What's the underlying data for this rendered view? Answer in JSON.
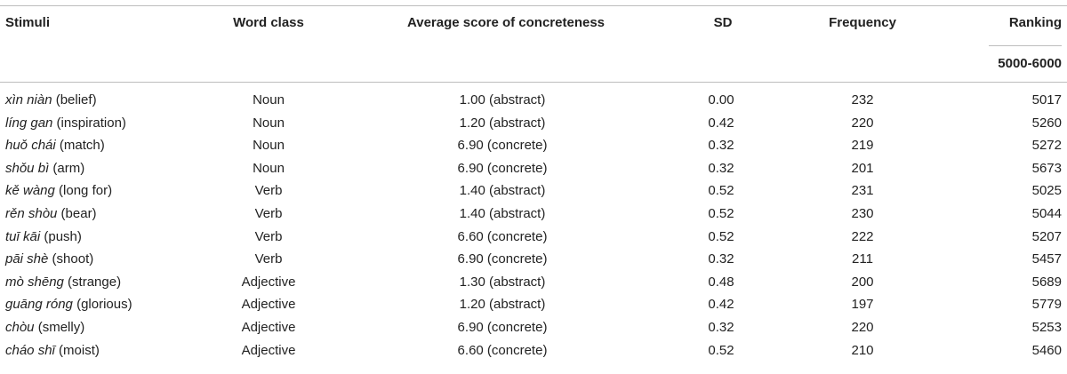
{
  "table": {
    "headers": {
      "stimuli": "Stimuli",
      "word_class": "Word class",
      "avg_score": "Average score of concreteness",
      "sd": "SD",
      "frequency": "Frequency",
      "ranking": "Ranking",
      "ranking_sub": "5000-6000"
    },
    "rows": [
      {
        "pinyin": "xìn niàn",
        "gloss": " (belief)",
        "word_class": "Noun",
        "score": "1.00 (abstract)",
        "sd": "0.00",
        "frequency": "232",
        "ranking": "5017"
      },
      {
        "pinyin": "líng gan",
        "gloss": " (inspiration)",
        "word_class": "Noun",
        "score": "1.20 (abstract)",
        "sd": "0.42",
        "frequency": "220",
        "ranking": "5260"
      },
      {
        "pinyin": "huǒ chái",
        "gloss": " (match)",
        "word_class": "Noun",
        "score": "6.90 (concrete)",
        "sd": "0.32",
        "frequency": "219",
        "ranking": "5272"
      },
      {
        "pinyin": "shǒu bì",
        "gloss": " (arm)",
        "word_class": "Noun",
        "score": "6.90 (concrete)",
        "sd": "0.32",
        "frequency": "201",
        "ranking": "5673"
      },
      {
        "pinyin": "kě wàng",
        "gloss": " (long for)",
        "word_class": "Verb",
        "score": "1.40 (abstract)",
        "sd": "0.52",
        "frequency": "231",
        "ranking": "5025"
      },
      {
        "pinyin": "rěn shòu",
        "gloss": " (bear)",
        "word_class": "Verb",
        "score": "1.40 (abstract)",
        "sd": "0.52",
        "frequency": "230",
        "ranking": "5044"
      },
      {
        "pinyin": "tuī kāi",
        "gloss": " (push)",
        "word_class": "Verb",
        "score": "6.60 (concrete)",
        "sd": "0.52",
        "frequency": "222",
        "ranking": "5207"
      },
      {
        "pinyin": "pāi shè",
        "gloss": " (shoot)",
        "word_class": "Verb",
        "score": "6.90 (concrete)",
        "sd": "0.32",
        "frequency": "211",
        "ranking": "5457"
      },
      {
        "pinyin": "mò shēng",
        "gloss": " (strange)",
        "word_class": "Adjective",
        "score": "1.30 (abstract)",
        "sd": "0.48",
        "frequency": "200",
        "ranking": "5689"
      },
      {
        "pinyin": "guāng róng",
        "gloss": " (glorious)",
        "word_class": "Adjective",
        "score": "1.20 (abstract)",
        "sd": "0.42",
        "frequency": "197",
        "ranking": "5779"
      },
      {
        "pinyin": "chòu",
        "gloss": " (smelly)",
        "word_class": "Adjective",
        "score": "6.90 (concrete)",
        "sd": "0.32",
        "frequency": "220",
        "ranking": "5253"
      },
      {
        "pinyin": "cháo shī",
        "gloss": " (moist)",
        "word_class": "Adjective",
        "score": "6.60 (concrete)",
        "sd": "0.52",
        "frequency": "210",
        "ranking": "5460"
      }
    ]
  }
}
